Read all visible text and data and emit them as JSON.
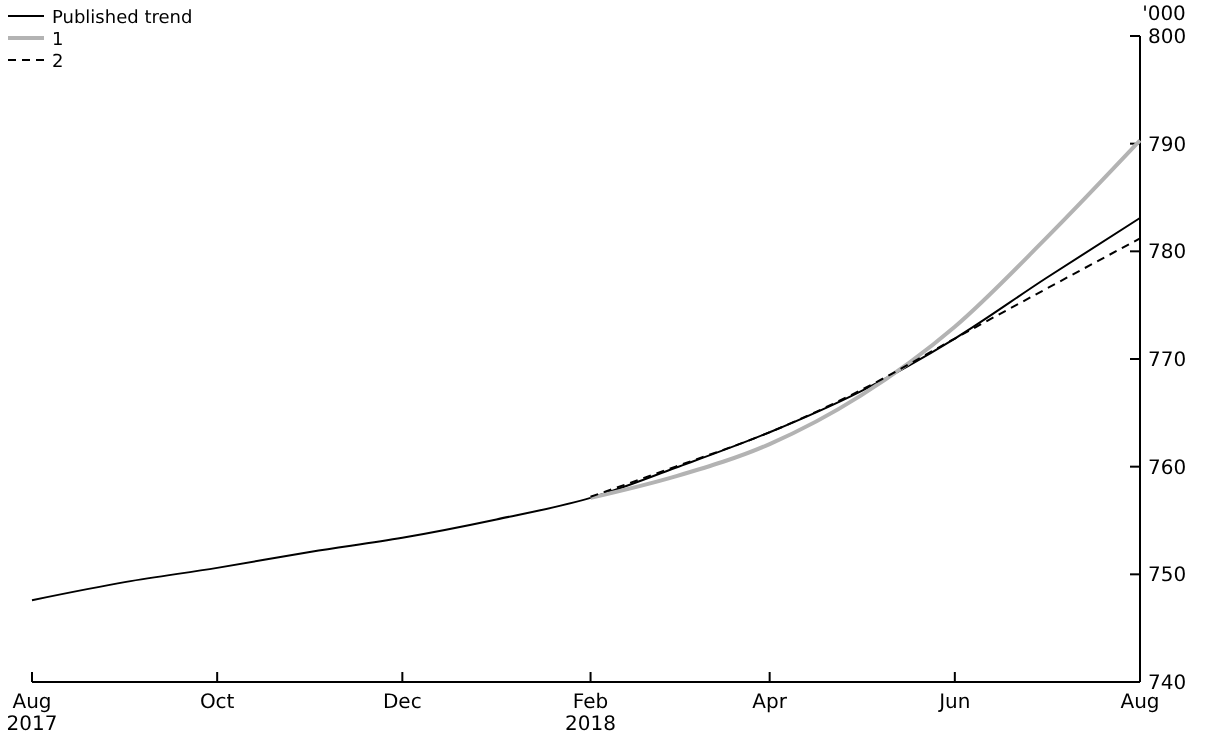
{
  "chart_data": {
    "type": "line",
    "ylabel": "'000",
    "x": [
      "2017-08",
      "2017-09",
      "2017-10",
      "2017-11",
      "2017-12",
      "2018-01",
      "2018-02",
      "2018-03",
      "2018-04",
      "2018-05",
      "2018-06",
      "2018-07",
      "2018-08"
    ],
    "series": [
      {
        "name": "Published trend",
        "color": "#000000",
        "line_style": "solid",
        "values": [
          747.6,
          749.3,
          750.6,
          752.1,
          753.4,
          755.1,
          757.1,
          759.9,
          763.2,
          767.0,
          771.9,
          777.5,
          783.1
        ]
      },
      {
        "name": "1",
        "color": "#b3b3b3",
        "line_style": "solid",
        "x": [
          "2018-02",
          "2018-03",
          "2018-04",
          "2018-05",
          "2018-06",
          "2018-07",
          "2018-08"
        ],
        "values": [
          757.1,
          759.1,
          762.1,
          766.6,
          773.0,
          781.2,
          790.3
        ]
      },
      {
        "name": "2",
        "color": "#000000",
        "line_style": "dashed",
        "x": [
          "2018-02",
          "2018-03",
          "2018-04",
          "2018-05",
          "2018-06",
          "2018-07",
          "2018-08"
        ],
        "values": [
          757.2,
          760.0,
          763.2,
          767.1,
          771.9,
          776.5,
          781.2
        ]
      }
    ],
    "xlim": [
      "2017-08",
      "2018-08"
    ],
    "xticks": [
      {
        "value": "2017-08",
        "label": "Aug\n2017"
      },
      {
        "value": "2017-10",
        "label": "Oct"
      },
      {
        "value": "2017-12",
        "label": "Dec"
      },
      {
        "value": "2018-02",
        "label": "Feb\n2018"
      },
      {
        "value": "2018-04",
        "label": "Apr"
      },
      {
        "value": "2018-06",
        "label": "Jun"
      },
      {
        "value": "2018-08",
        "label": "Aug"
      }
    ],
    "ylim": [
      740,
      800
    ],
    "yticks": [
      740,
      750,
      760,
      770,
      780,
      790,
      800
    ],
    "legend": "top left",
    "grid": false,
    "marker": "none"
  }
}
